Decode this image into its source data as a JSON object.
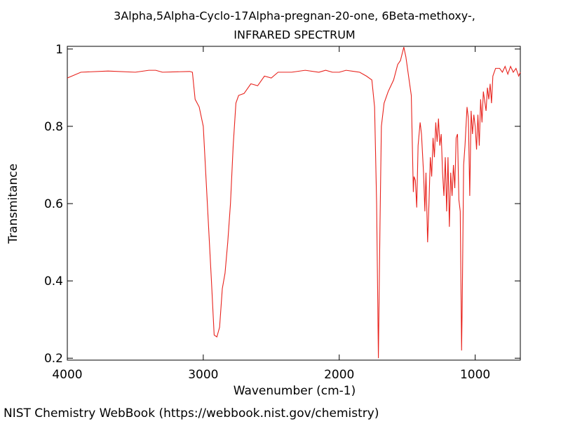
{
  "chart_data": {
    "type": "line",
    "title": "3Alpha,5Alpha-Cyclo-17Alpha-pregnan-20-one, 6Beta-methoxy-,",
    "subtitle": "INFRARED SPECTRUM",
    "x_label": "Wavenumber (cm-1)",
    "y_label": "Transmitance",
    "footer": "NIST Chemistry WebBook (https://webbook.nist.gov/chemistry)",
    "xlim": [
      4000,
      668
    ],
    "ylim": [
      0.195,
      1.007
    ],
    "xticks": [
      4000,
      3000,
      2000,
      1000
    ],
    "yticks": [
      0.2,
      0.4,
      0.6,
      0.8,
      1
    ],
    "series": [
      {
        "name": "spectrum",
        "color": "#e8221c",
        "x": [
          4000,
          3900,
          3700,
          3500,
          3400,
          3350,
          3300,
          3100,
          3080,
          3060,
          3030,
          3000,
          2970,
          2940,
          2920,
          2900,
          2880,
          2860,
          2840,
          2820,
          2800,
          2780,
          2760,
          2740,
          2700,
          2650,
          2600,
          2550,
          2500,
          2450,
          2350,
          2250,
          2150,
          2100,
          2050,
          2000,
          1950,
          1850,
          1800,
          1760,
          1740,
          1725,
          1712,
          1700,
          1690,
          1670,
          1640,
          1600,
          1570,
          1550,
          1525,
          1510,
          1490,
          1470,
          1455,
          1450,
          1440,
          1430,
          1420,
          1405,
          1395,
          1380,
          1370,
          1362,
          1350,
          1340,
          1330,
          1320,
          1310,
          1300,
          1290,
          1280,
          1270,
          1260,
          1250,
          1240,
          1230,
          1220,
          1210,
          1200,
          1190,
          1180,
          1170,
          1160,
          1150,
          1140,
          1130,
          1120,
          1110,
          1100,
          1095,
          1085,
          1075,
          1060,
          1050,
          1040,
          1030,
          1020,
          1010,
          1000,
          990,
          980,
          970,
          960,
          950,
          940,
          920,
          910,
          900,
          890,
          880,
          870,
          850,
          820,
          800,
          780,
          760,
          740,
          720,
          700,
          680,
          668
        ],
        "values": [
          0.925,
          0.94,
          0.943,
          0.94,
          0.945,
          0.945,
          0.94,
          0.942,
          0.94,
          0.87,
          0.85,
          0.8,
          0.6,
          0.4,
          0.26,
          0.255,
          0.28,
          0.38,
          0.42,
          0.5,
          0.6,
          0.75,
          0.86,
          0.88,
          0.885,
          0.91,
          0.905,
          0.93,
          0.925,
          0.94,
          0.94,
          0.945,
          0.94,
          0.945,
          0.94,
          0.94,
          0.945,
          0.94,
          0.93,
          0.92,
          0.85,
          0.6,
          0.2,
          0.55,
          0.8,
          0.86,
          0.89,
          0.92,
          0.96,
          0.97,
          1.005,
          0.98,
          0.93,
          0.88,
          0.63,
          0.67,
          0.66,
          0.59,
          0.75,
          0.81,
          0.78,
          0.68,
          0.58,
          0.68,
          0.5,
          0.6,
          0.72,
          0.67,
          0.77,
          0.72,
          0.81,
          0.76,
          0.82,
          0.75,
          0.78,
          0.68,
          0.62,
          0.72,
          0.58,
          0.72,
          0.54,
          0.68,
          0.62,
          0.7,
          0.64,
          0.77,
          0.78,
          0.61,
          0.58,
          0.22,
          0.35,
          0.7,
          0.75,
          0.85,
          0.82,
          0.62,
          0.84,
          0.78,
          0.83,
          0.8,
          0.74,
          0.83,
          0.75,
          0.87,
          0.81,
          0.89,
          0.84,
          0.9,
          0.87,
          0.91,
          0.86,
          0.93,
          0.95,
          0.95,
          0.94,
          0.955,
          0.935,
          0.955,
          0.94,
          0.95,
          0.93,
          0.94
        ]
      }
    ]
  }
}
